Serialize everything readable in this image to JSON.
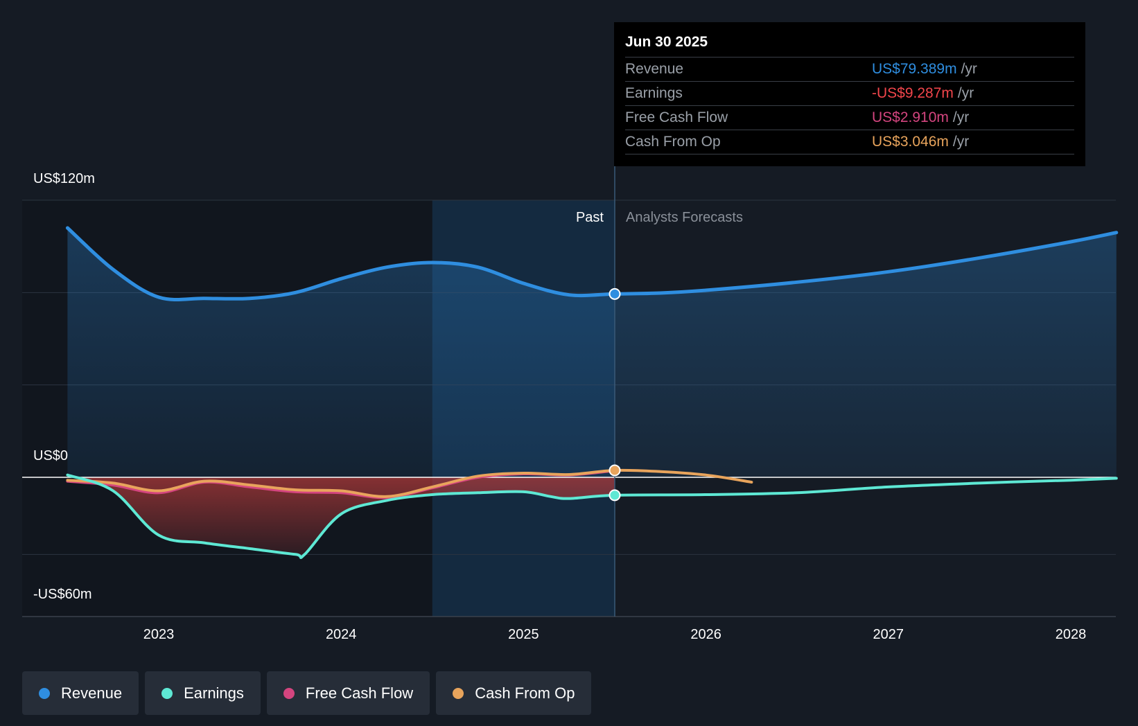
{
  "colors": {
    "revenue": "#2f8ee0",
    "earnings": "#5ee8d4",
    "free_cash_flow": "#d4457f",
    "cash_from_op": "#e8a45c",
    "background": "#151b24"
  },
  "tooltip": {
    "date": "Jun 30 2025",
    "rows": [
      {
        "label": "Revenue",
        "value": "US$79.389m",
        "unit": "/yr"
      },
      {
        "label": "Earnings",
        "value": "-US$9.287m",
        "unit": "/yr"
      },
      {
        "label": "Free Cash Flow",
        "value": "US$2.910m",
        "unit": "/yr"
      },
      {
        "label": "Cash From Op",
        "value": "US$3.046m",
        "unit": "/yr"
      }
    ]
  },
  "legend": [
    {
      "label": "Revenue"
    },
    {
      "label": "Earnings"
    },
    {
      "label": "Free Cash Flow"
    },
    {
      "label": "Cash From Op"
    }
  ],
  "chart_data": {
    "type": "line",
    "past_label": "Past",
    "forecast_label": "Analysts Forecasts",
    "y_tick_labels": [
      "US$120m",
      "US$0",
      "-US$60m"
    ],
    "y_ticks": [
      120,
      0,
      -60
    ],
    "ylim": [
      -60,
      120
    ],
    "x_tick_labels": [
      "2023",
      "2024",
      "2025",
      "2026",
      "2027",
      "2028"
    ],
    "x_ticks": [
      2023,
      2024,
      2025,
      2026,
      2027,
      2028
    ],
    "xlim": [
      2022.25,
      2028.25
    ],
    "past_end": 2025.5,
    "highlight_start": 2024.5,
    "grid": true,
    "legend_position": "bottom-left",
    "series": [
      {
        "name": "Revenue",
        "x": [
          2022.5,
          2022.75,
          2023.0,
          2023.25,
          2023.5,
          2023.75,
          2024.0,
          2024.25,
          2024.5,
          2024.75,
          2025.0,
          2025.25,
          2025.5,
          2025.75,
          2026.0,
          2026.5,
          2027.0,
          2027.5,
          2028.0,
          2028.25
        ],
        "y": [
          108,
          90,
          78,
          77.5,
          77.5,
          80,
          86,
          91,
          93,
          91,
          84,
          79,
          79.4,
          79.8,
          81,
          84.5,
          89,
          95,
          102,
          106
        ]
      },
      {
        "name": "Earnings",
        "x": [
          2022.5,
          2022.75,
          2023.0,
          2023.25,
          2023.5,
          2023.75,
          2023.8,
          2024.0,
          2024.25,
          2024.5,
          2024.75,
          2025.0,
          2025.15,
          2025.25,
          2025.5,
          2026.0,
          2026.5,
          2027.0,
          2027.5,
          2028.0,
          2028.25
        ],
        "y": [
          1,
          -7,
          -30,
          -34,
          -37,
          -40,
          -40,
          -19,
          -12,
          -9,
          -8,
          -7.5,
          -10,
          -11,
          -9.3,
          -9,
          -8,
          -5,
          -3,
          -1.5,
          -0.5
        ]
      },
      {
        "name": "Free Cash Flow",
        "x": [
          2022.5,
          2022.75,
          2023.0,
          2023.25,
          2023.5,
          2023.75,
          2024.0,
          2024.25,
          2024.5,
          2024.75,
          2025.0,
          2025.25,
          2025.5
        ],
        "y": [
          -2,
          -4,
          -8,
          -2.5,
          -5,
          -7.5,
          -8,
          -10.5,
          -5.5,
          0,
          1.5,
          1,
          2.9
        ]
      },
      {
        "name": "Cash From Op",
        "x": [
          2022.5,
          2022.75,
          2023.0,
          2023.25,
          2023.5,
          2023.75,
          2024.0,
          2024.25,
          2024.5,
          2024.75,
          2025.0,
          2025.25,
          2025.5,
          2025.75,
          2026.0,
          2026.25
        ],
        "y": [
          -1.5,
          -3,
          -7,
          -2,
          -4,
          -6.5,
          -7,
          -10,
          -5,
          0.5,
          1.8,
          1.2,
          3.0,
          2.5,
          1,
          -2.5
        ]
      }
    ]
  }
}
